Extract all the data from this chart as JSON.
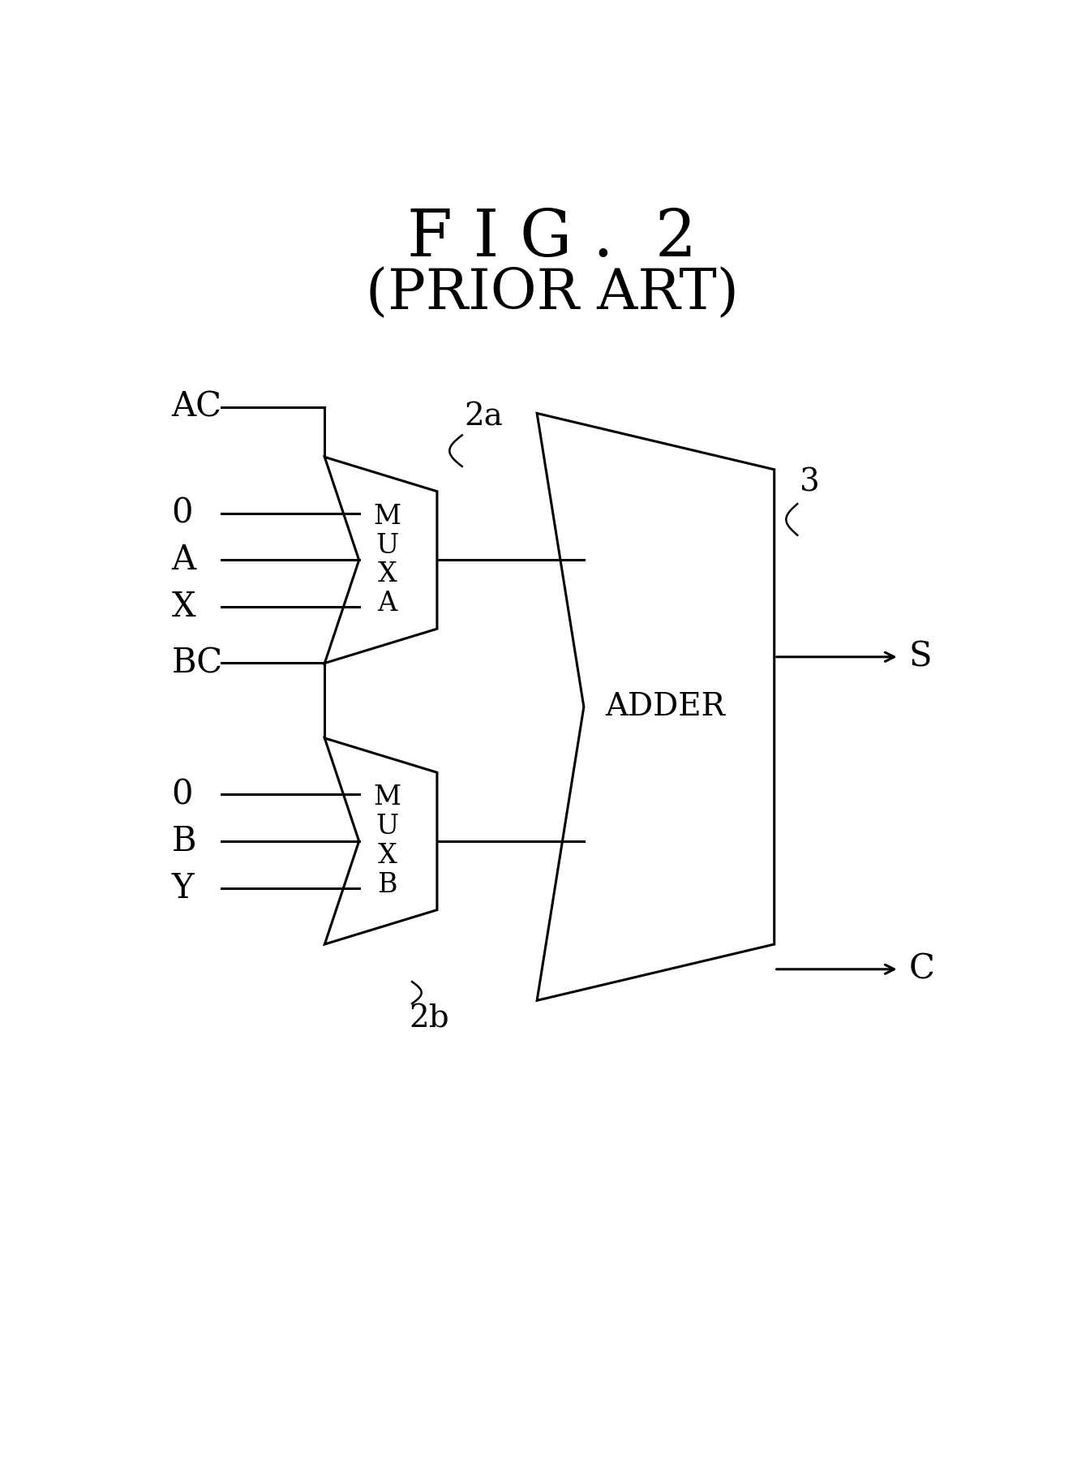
{
  "title_line1": "F I G .  2",
  "title_line2": "(PRIOR ART)",
  "bg_color": "#ffffff",
  "line_color": "#000000",
  "title_fontsize": 58,
  "subtitle_fontsize": 50,
  "label_fontsize": 30,
  "annotation_fontsize": 28,
  "mux_text_fontsize": 24,
  "adder_text_fontsize": 28,
  "ref_muxa": "2a",
  "ref_muxb": "2b",
  "ref_adder": "3",
  "muxa_inputs": [
    "AC",
    "0",
    "A",
    "X"
  ],
  "muxb_inputs": [
    "BC",
    "0",
    "B",
    "Y"
  ],
  "outputs": [
    "S",
    "C"
  ]
}
